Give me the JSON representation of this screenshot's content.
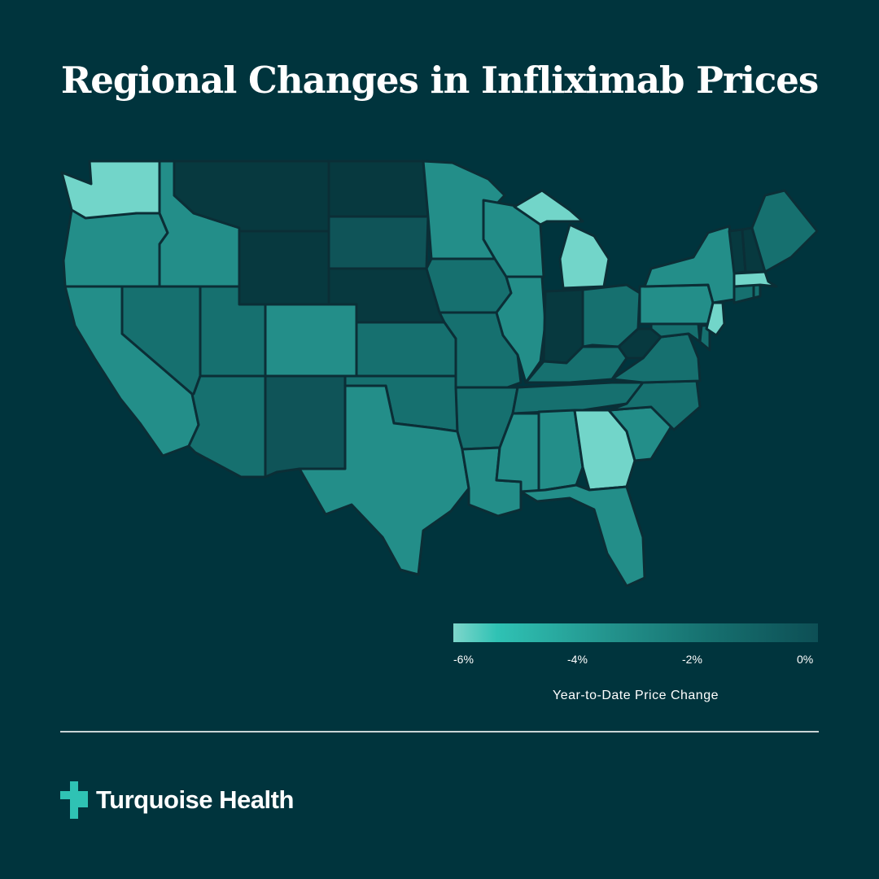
{
  "title": "Regional Changes in Infliximab Prices",
  "map": {
    "colors": {
      "background": "#00343d",
      "very_light": "#72d5c9",
      "mid_teal": "#238e89",
      "dark_teal": "#16706f",
      "darker_teal": "#0f5458",
      "near_background": "#07393f",
      "border": "#0b2e36"
    },
    "legend": {
      "ticks": [
        "-6%",
        "-4%",
        "-2%",
        "0%"
      ],
      "title": "Year-to-Date Price Change",
      "range": [
        -6,
        0
      ]
    }
  },
  "brand": {
    "name": "Turquoise Health",
    "logo_color": "#2fc2b4"
  }
}
